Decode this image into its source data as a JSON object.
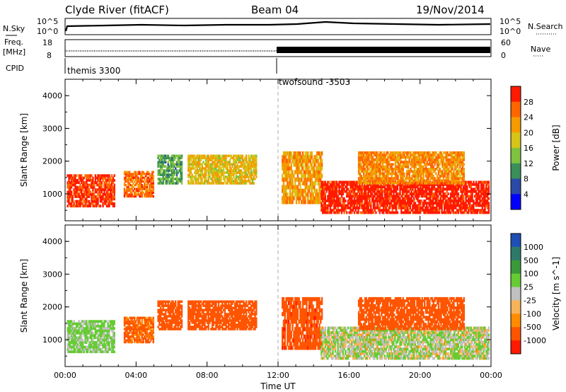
{
  "header": {
    "station": "Clyde River (fitACF)",
    "beam": "Beam 04",
    "date": "19/Nov/2014"
  },
  "aux_panels": {
    "nsky": {
      "label": "N.Sky",
      "tick_top": "10^5",
      "tick_bottom": "10^0"
    },
    "nsearch": {
      "label": "N.Search",
      "tick_top": "10^5",
      "tick_bottom": "10^0"
    },
    "freq": {
      "label_line1": "Freq.",
      "label_line2": "[MHz]",
      "tick_top": "18",
      "tick_bottom": "8"
    },
    "nave": {
      "label": "Nave",
      "tick_top": "60",
      "tick_bottom": "0"
    },
    "cpid": {
      "label": "CPID",
      "programs": [
        "themis 3300",
        "twofsound -3503"
      ]
    }
  },
  "colors": {
    "power_scale": [
      "#0000ff",
      "#2b4aa8",
      "#3a8f5a",
      "#7fc241",
      "#d6c419",
      "#f59b00",
      "#ff6600",
      "#ff1a00"
    ],
    "velocity_scale": [
      "#ff1a00",
      "#ff5500",
      "#ff8c00",
      "#f7b35a",
      "#c0c0c0",
      "#66cc33",
      "#3a9a3a",
      "#2d7a6a",
      "#1f4fb5"
    ],
    "ground_scatter": "#999999"
  },
  "chart_data": [
    {
      "type": "heatmap",
      "title": "Power",
      "xlabel": "Time UT",
      "ylabel": "Slant Range [km]",
      "x_ticks": [
        "00:00",
        "04:00",
        "08:00",
        "12:00",
        "16:00",
        "20:00",
        "00:00"
      ],
      "y_ticks": [
        "1000",
        "2000",
        "3000",
        "4000"
      ],
      "xlim_hours": [
        0,
        24
      ],
      "ylim_km": [
        180,
        4500
      ],
      "colorbar": {
        "label": "Power [dB]",
        "ticks": [
          "4",
          "8",
          "12",
          "16",
          "20",
          "24",
          "28"
        ],
        "range": [
          0,
          30
        ]
      },
      "echo_regions": [
        {
          "start_h": 0.1,
          "end_h": 2.8,
          "range_km": [
            600,
            1600
          ],
          "value": 27
        },
        {
          "start_h": 3.3,
          "end_h": 5.0,
          "range_km": [
            900,
            1700
          ],
          "value": 24
        },
        {
          "start_h": 5.2,
          "end_h": 6.6,
          "range_km": [
            1300,
            2200
          ],
          "value": 11
        },
        {
          "start_h": 6.9,
          "end_h": 10.8,
          "range_km": [
            1300,
            2200
          ],
          "value": 18
        },
        {
          "start_h": 12.2,
          "end_h": 14.5,
          "range_km": [
            700,
            2300
          ],
          "value": 21
        },
        {
          "start_h": 14.4,
          "end_h": 23.9,
          "range_km": [
            400,
            1400
          ],
          "value": 29
        },
        {
          "start_h": 16.5,
          "end_h": 22.5,
          "range_km": [
            1300,
            2300
          ],
          "value": 22
        }
      ]
    },
    {
      "type": "heatmap",
      "title": "Velocity",
      "xlabel": "Time UT",
      "ylabel": "Slant Range [km]",
      "x_ticks": [
        "00:00",
        "04:00",
        "08:00",
        "12:00",
        "16:00",
        "20:00",
        "00:00"
      ],
      "y_ticks": [
        "1000",
        "2000",
        "3000",
        "4000"
      ],
      "xlim_hours": [
        0,
        24
      ],
      "ylim_km": [
        180,
        4500
      ],
      "colorbar": {
        "label": "Velocity [m s^-1]",
        "ticks": [
          "1000",
          "500",
          "100",
          "25",
          "-25",
          "-100",
          "-500",
          "-1000"
        ]
      },
      "echo_regions": [
        {
          "start_h": 0.1,
          "end_h": 2.8,
          "range_km": [
            600,
            1600
          ],
          "value": 150
        },
        {
          "start_h": 3.3,
          "end_h": 5.0,
          "range_km": [
            900,
            1700
          ],
          "value": -150
        },
        {
          "start_h": 5.2,
          "end_h": 6.6,
          "range_km": [
            1300,
            2200
          ],
          "value": -250
        },
        {
          "start_h": 6.9,
          "end_h": 10.8,
          "range_km": [
            1300,
            2200
          ],
          "value": -300
        },
        {
          "start_h": 12.2,
          "end_h": 14.5,
          "range_km": [
            700,
            2300
          ],
          "value": -400
        },
        {
          "start_h": 14.4,
          "end_h": 23.9,
          "range_km": [
            400,
            1400
          ],
          "value": 80
        },
        {
          "start_h": 16.5,
          "end_h": 22.5,
          "range_km": [
            1300,
            2300
          ],
          "value": -350
        }
      ]
    }
  ]
}
